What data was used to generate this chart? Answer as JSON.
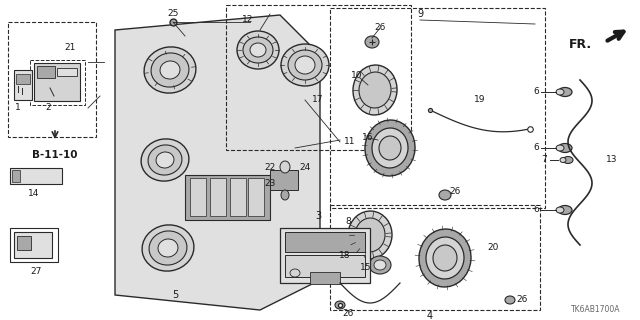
{
  "bg_color": "#ffffff",
  "diagram_code": "TK6AB1700A",
  "fr_label": "FR.",
  "ref_label": "B-11-10",
  "line_color": "#2a2a2a",
  "text_color": "#1a1a1a",
  "figsize": [
    6.4,
    3.2
  ],
  "dpi": 100,
  "gray1": "#c8c8c8",
  "gray2": "#e0e0e0",
  "gray3": "#a8a8a8",
  "gray4": "#d4d4d4"
}
